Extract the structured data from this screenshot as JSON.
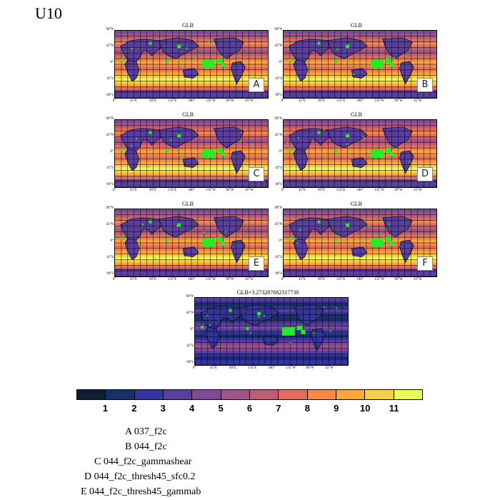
{
  "page_title": "U10",
  "colors": {
    "land_outline": "#0b0b2a",
    "grid_line": "#000000",
    "highlight_box": "#22ee22",
    "letter_box_bg": "#ffffff"
  },
  "colorbar": {
    "colors": [
      "#0f1f33",
      "#18306a",
      "#33349c",
      "#5a3f9e",
      "#7d4a95",
      "#9d5488",
      "#bd5e78",
      "#de6e60",
      "#f5894a",
      "#fba73c",
      "#f4d04a",
      "#eaf95c"
    ],
    "labels": [
      "1",
      "2",
      "3",
      "4",
      "5",
      "6",
      "7",
      "8",
      "9",
      "10",
      "11"
    ]
  },
  "lat_labels": [
    "90°N",
    "45°N",
    "0°",
    "45°S",
    "90°S"
  ],
  "lon_labels": [
    "0°",
    "45°E",
    "90°E",
    "135°E",
    "180°",
    "135°W",
    "90°W",
    "45°W"
  ],
  "panels": [
    {
      "title": "GLB",
      "letter": "A"
    },
    {
      "title": "GLB",
      "letter": "B"
    },
    {
      "title": "GLB",
      "letter": "C"
    },
    {
      "title": "GLB",
      "letter": "D"
    },
    {
      "title": "GLB",
      "letter": "E"
    },
    {
      "title": "GLB",
      "letter": "F"
    },
    {
      "title": "GLB=3.273287682317738",
      "letter": ""
    }
  ],
  "legend": [
    "A  037_f2c",
    "B  044_f2c",
    "C  044_f2c_gammashear",
    "D  044_f2c_thresh45_sfc0.2",
    "E  044_f2c_thresh45_gammab"
  ],
  "chart_data": [
    {
      "type": "heatmap",
      "title": "GLB",
      "panel_letter": "A",
      "variable": "U10",
      "lat_range": [
        -90,
        90
      ],
      "lon_range": [
        0,
        360
      ],
      "colorbar_levels": [
        1,
        2,
        3,
        4,
        5,
        6,
        7,
        8,
        9,
        10,
        11
      ]
    },
    {
      "type": "heatmap",
      "title": "GLB",
      "panel_letter": "B",
      "variable": "U10",
      "lat_range": [
        -90,
        90
      ],
      "lon_range": [
        0,
        360
      ],
      "colorbar_levels": [
        1,
        2,
        3,
        4,
        5,
        6,
        7,
        8,
        9,
        10,
        11
      ]
    },
    {
      "type": "heatmap",
      "title": "GLB",
      "panel_letter": "C",
      "variable": "U10",
      "lat_range": [
        -90,
        90
      ],
      "lon_range": [
        0,
        360
      ],
      "colorbar_levels": [
        1,
        2,
        3,
        4,
        5,
        6,
        7,
        8,
        9,
        10,
        11
      ]
    },
    {
      "type": "heatmap",
      "title": "GLB",
      "panel_letter": "D",
      "variable": "U10",
      "lat_range": [
        -90,
        90
      ],
      "lon_range": [
        0,
        360
      ],
      "colorbar_levels": [
        1,
        2,
        3,
        4,
        5,
        6,
        7,
        8,
        9,
        10,
        11
      ]
    },
    {
      "type": "heatmap",
      "title": "GLB",
      "panel_letter": "E",
      "variable": "U10",
      "lat_range": [
        -90,
        90
      ],
      "lon_range": [
        0,
        360
      ],
      "colorbar_levels": [
        1,
        2,
        3,
        4,
        5,
        6,
        7,
        8,
        9,
        10,
        11
      ]
    },
    {
      "type": "heatmap",
      "title": "GLB",
      "panel_letter": "F",
      "variable": "U10",
      "lat_range": [
        -90,
        90
      ],
      "lon_range": [
        0,
        360
      ],
      "colorbar_levels": [
        1,
        2,
        3,
        4,
        5,
        6,
        7,
        8,
        9,
        10,
        11
      ]
    },
    {
      "type": "heatmap",
      "title": "GLB=3.273287682317738",
      "panel_letter": "",
      "variable": "U10",
      "lat_range": [
        -90,
        90
      ],
      "lon_range": [
        0,
        360
      ],
      "colorbar_levels": [
        1,
        2,
        3,
        4,
        5,
        6,
        7,
        8,
        9,
        10,
        11
      ]
    }
  ]
}
